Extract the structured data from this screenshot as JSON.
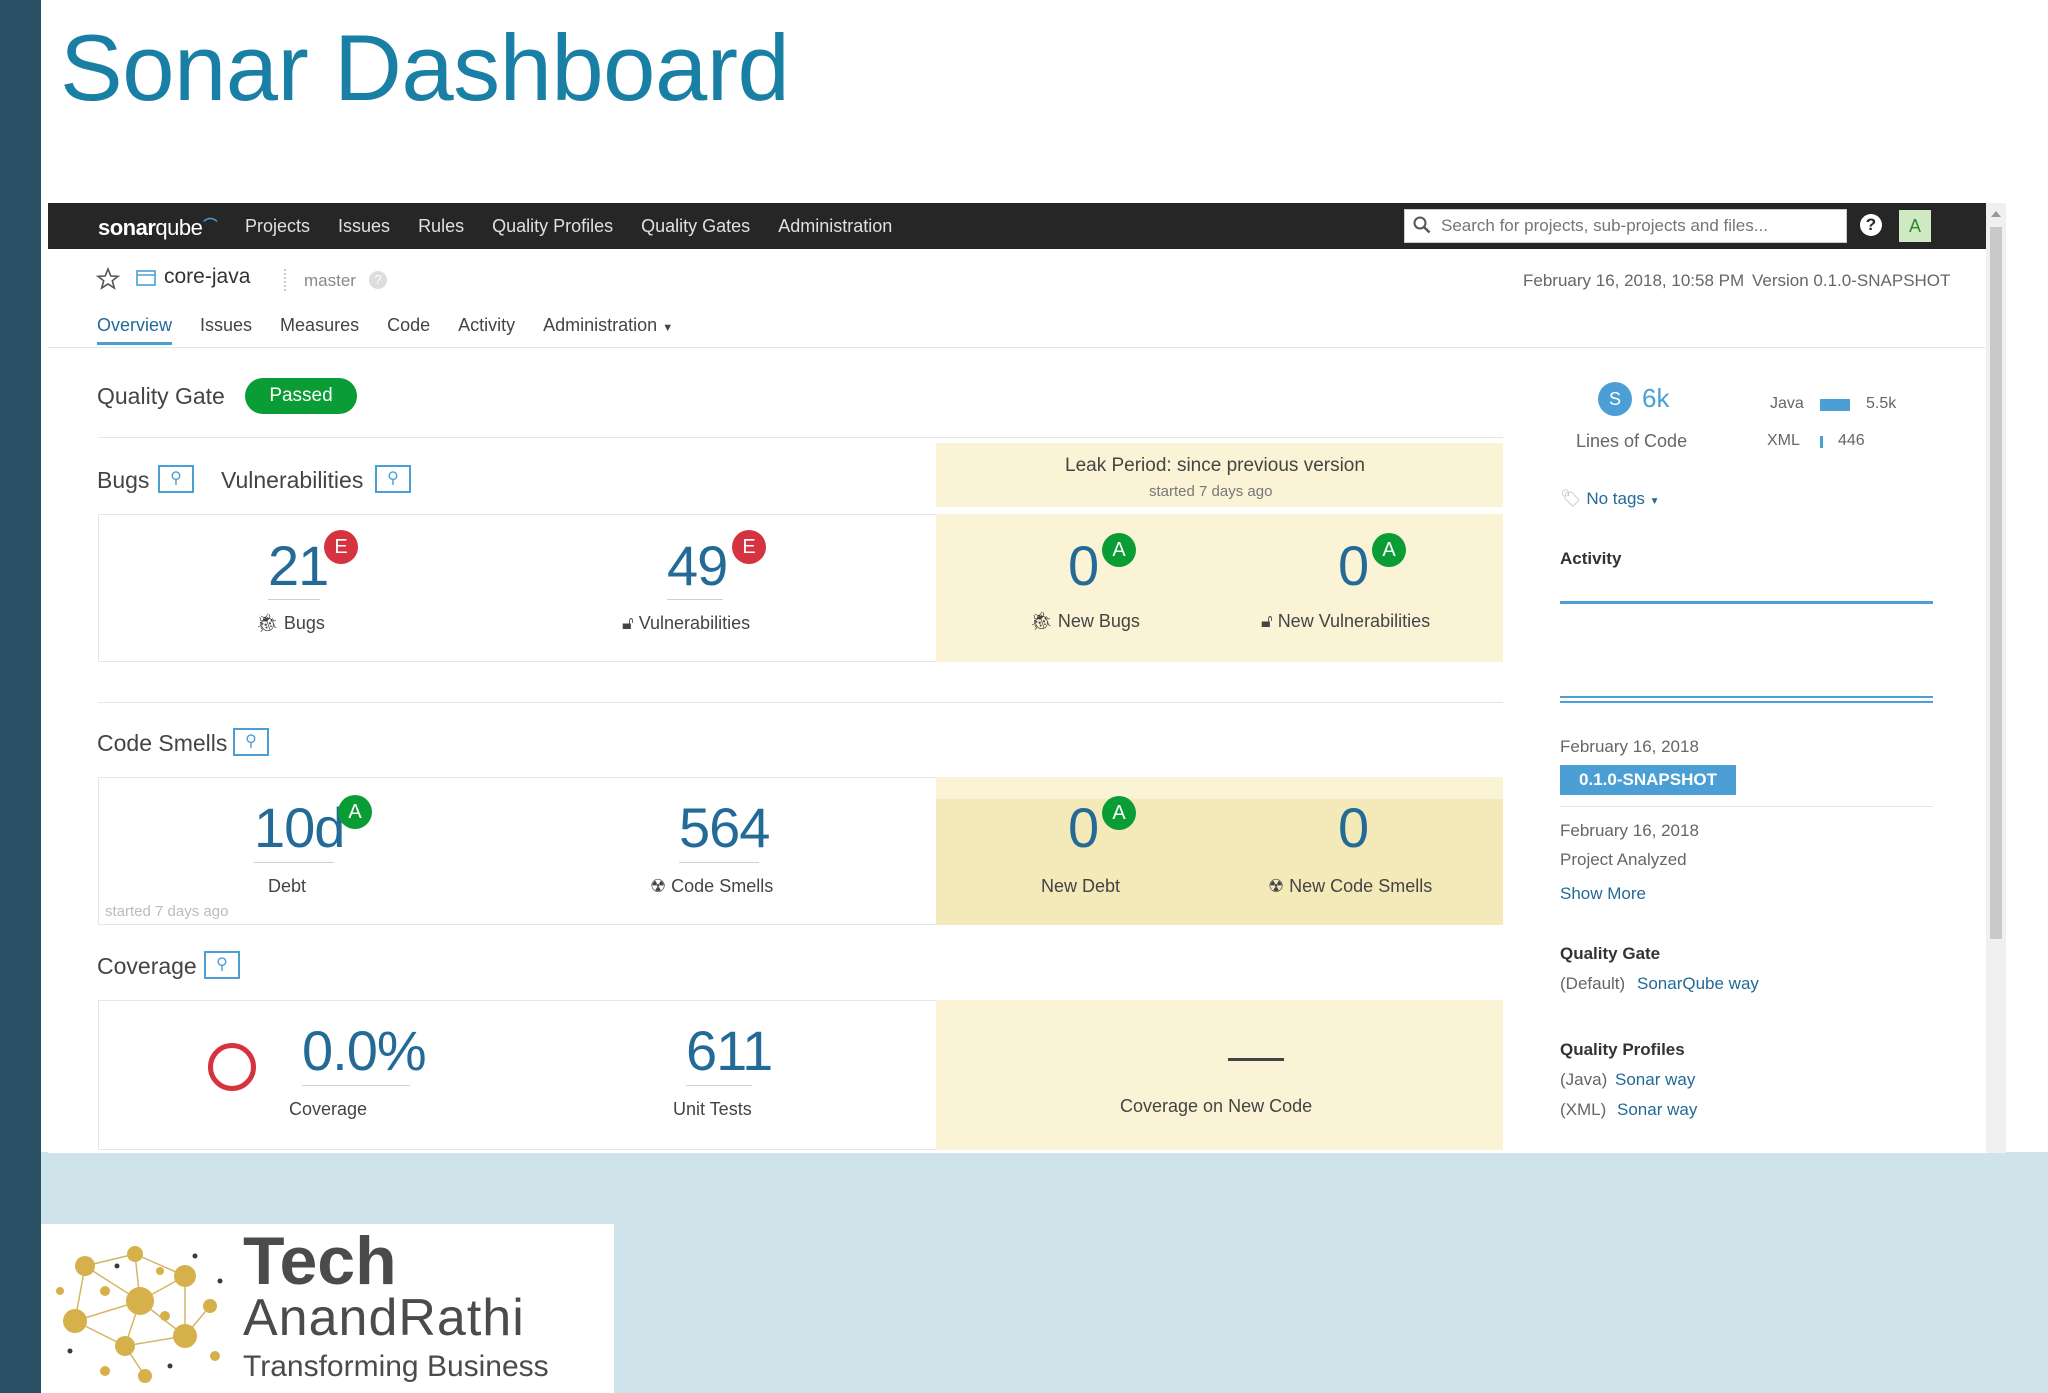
{
  "slide": {
    "title": "Sonar Dashboard"
  },
  "topnav": {
    "logo_main": "sonar",
    "logo_rest": "qube",
    "links": [
      "Projects",
      "Issues",
      "Rules",
      "Quality Profiles",
      "Quality Gates",
      "Administration"
    ],
    "search_placeholder": "Search for projects, sub-projects and files...",
    "help_icon": "?",
    "avatar": "A"
  },
  "project": {
    "name": "core-java",
    "branch": "master",
    "date": "February 16, 2018, 10:58 PM",
    "version": "Version 0.1.0-SNAPSHOT",
    "tabs": [
      "Overview",
      "Issues",
      "Measures",
      "Code",
      "Activity",
      "Administration"
    ]
  },
  "quality_gate": {
    "label": "Quality Gate",
    "status": "Passed"
  },
  "leak_period": {
    "title": "Leak Period: since previous version",
    "subtitle": "started 7 days ago"
  },
  "bugs_section": {
    "title_bugs": "Bugs",
    "title_vulns": "Vulnerabilities",
    "bugs": {
      "value": "21",
      "rating": "E",
      "label": "Bugs"
    },
    "vulnerabilities": {
      "value": "49",
      "rating": "E",
      "label": "Vulnerabilities"
    },
    "new_bugs": {
      "value": "0",
      "rating": "A",
      "label": "New Bugs"
    },
    "new_vulnerabilities": {
      "value": "0",
      "rating": "A",
      "label": "New Vulnerabilities"
    }
  },
  "smells_section": {
    "title": "Code Smells",
    "debt": {
      "value": "10d",
      "rating": "A",
      "label": "Debt"
    },
    "started": "started 7 days ago",
    "code_smells": {
      "value": "564",
      "label": "Code Smells"
    },
    "new_debt": {
      "value": "0",
      "rating": "A",
      "label": "New Debt"
    },
    "new_code_smells": {
      "value": "0",
      "label": "New Code Smells"
    }
  },
  "coverage_section": {
    "title": "Coverage",
    "coverage": {
      "value": "0.0%",
      "label": "Coverage"
    },
    "unit_tests": {
      "value": "611",
      "label": "Unit Tests"
    },
    "new_coverage": {
      "value": "—",
      "label": "Coverage on New Code"
    }
  },
  "sidebar": {
    "size_badge": "S",
    "loc_value": "6k",
    "loc_label": "Lines of Code",
    "languages": [
      {
        "name": "Java",
        "value": "5.5k",
        "share": 0.925
      },
      {
        "name": "XML",
        "value": "446",
        "share": 0.075
      }
    ],
    "tags": "No tags",
    "activity_title": "Activity",
    "events": [
      {
        "date": "February 16, 2018",
        "badge": "0.1.0-SNAPSHOT"
      },
      {
        "date": "February 16, 2018",
        "text": "Project Analyzed"
      }
    ],
    "show_more": "Show More",
    "quality_gate_title": "Quality Gate",
    "quality_gate_default": "(Default)",
    "quality_gate_link": "SonarQube way",
    "quality_profiles_title": "Quality Profiles",
    "profiles": [
      {
        "lang": "(Java)",
        "name": "Sonar way"
      },
      {
        "lang": "(XML)",
        "name": "Sonar way"
      }
    ]
  },
  "brand": {
    "line1": "Tech",
    "line2": "AnandRathi",
    "tagline": "Transforming Business"
  },
  "colors": {
    "accent": "#4b9fd5",
    "passed": "#0a9c35",
    "rating_e": "#d4333f",
    "leak_bg": "#fbf3d5",
    "title": "#1a7fa5"
  }
}
